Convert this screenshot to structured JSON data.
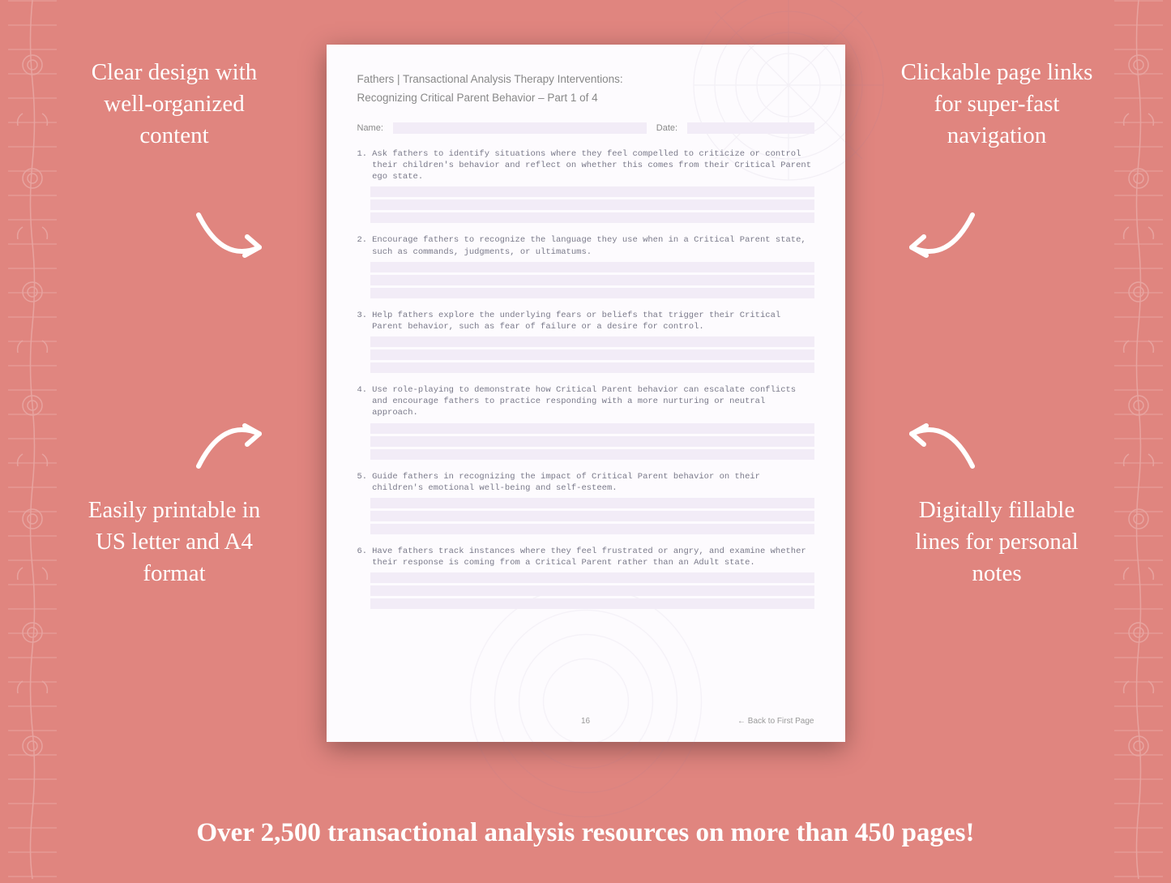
{
  "background_color": "#e0857f",
  "text_color": "#ffffff",
  "callouts": {
    "top_left": "Clear design with well-organized content",
    "top_right": "Clickable page links for super-fast navigation",
    "bottom_left": "Easily printable in US letter and A4 format",
    "bottom_right": "Digitally fillable lines for personal notes"
  },
  "bottom_banner": "Over 2,500 transactional analysis resources on more than 450 pages!",
  "page": {
    "background": "#fdfbfe",
    "fill_color": "#f2ecf7",
    "header_line1": "Fathers | Transactional Analysis Therapy Interventions:",
    "header_line2": "Recognizing Critical Parent Behavior  – Part 1 of 4",
    "name_label": "Name:",
    "date_label": "Date:",
    "page_number": "16",
    "back_link": "← Back to First Page",
    "items": [
      {
        "num": "1.",
        "text": "Ask fathers to identify situations where they feel compelled to criticize or control their children's behavior and reflect on whether this comes from their Critical Parent ego state."
      },
      {
        "num": "2.",
        "text": "Encourage fathers to recognize the language they use when in a Critical Parent state, such as commands, judgments, or ultimatums."
      },
      {
        "num": "3.",
        "text": "Help fathers explore the underlying fears or beliefs that trigger their Critical Parent behavior, such as fear of failure or a desire for control."
      },
      {
        "num": "4.",
        "text": "Use role-playing to demonstrate how Critical Parent behavior can escalate conflicts and encourage fathers to practice responding with a more nurturing or neutral approach."
      },
      {
        "num": "5.",
        "text": "Guide fathers in recognizing the impact of Critical Parent behavior on their children's emotional well-being and self-esteem."
      },
      {
        "num": "6.",
        "text": "Have fathers track instances where they feel frustrated or angry, and examine whether their response is coming from a Critical Parent rather than an Adult state."
      }
    ]
  },
  "arrow_stroke": "#ffffff",
  "arrow_stroke_width": 6
}
